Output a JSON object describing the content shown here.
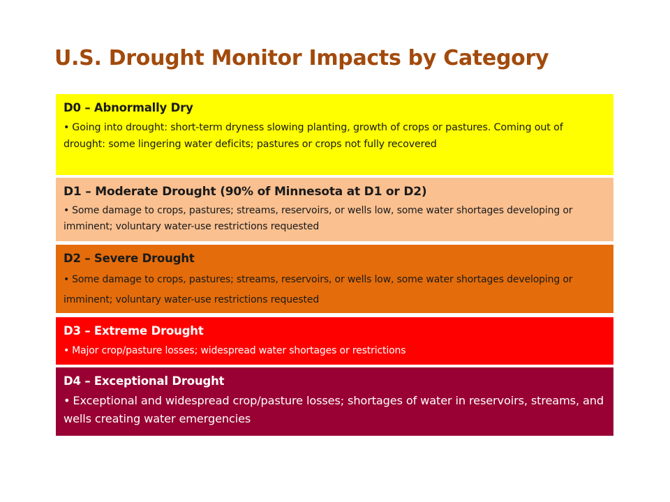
{
  "title": "U.S. Drought Monitor Impacts by Category",
  "categories": [
    {
      "heading": "D0 – Abnormally Dry",
      "bullet": "•",
      "description": "Going into drought: short-term dryness slowing planting, growth of crops or pastures. Coming out of drought: some lingering water deficits;  pastures or crops not fully recovered",
      "background": "#ffff00",
      "text_color": "#1a1a1a"
    },
    {
      "heading": "D1 – Moderate Drought  (90% of Minnesota at D1 or D2)",
      "bullet": "•",
      "description": "Some damage to crops, pastures; streams, reservoirs, or wells low, some water shortages developing or imminent; voluntary water-use restrictions requested",
      "background": "#fac090",
      "text_color": "#1a1a1a"
    },
    {
      "heading": "D2 – Severe Drought",
      "bullet": "•",
      "description": "Some damage to crops, pastures; streams, reservoirs, or wells low, some water shortages developing or imminent; voluntary water-use restrictions requested",
      "background": "#e46c0a",
      "text_color": "#1a1a1a"
    },
    {
      "heading": "D3 – Extreme Drought",
      "bullet": "•",
      "description": "Major crop/pasture losses;  widespread water shortages or restrictions",
      "background": "#ff0000",
      "text_color": "#ffffff"
    },
    {
      "heading": "D4 – Exceptional Drought",
      "bullet": "•",
      "description": "Exceptional and widespread crop/pasture losses; shortages of water in reservoirs, streams, and wells creating water emergencies",
      "background": "#990033",
      "text_color": "#ffffff"
    }
  ]
}
